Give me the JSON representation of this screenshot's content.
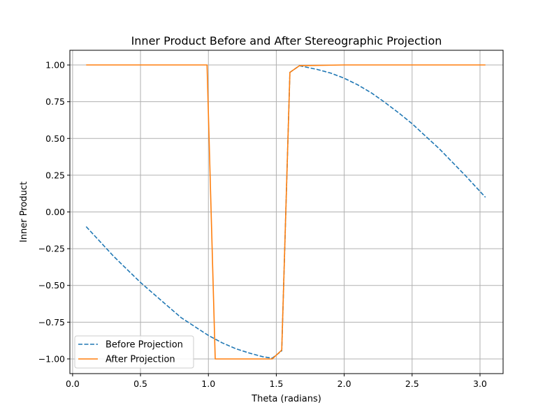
{
  "chart_data": {
    "type": "line",
    "title": "Inner Product Before and After Stereographic Projection",
    "xlabel": "Theta (radians)",
    "ylabel": "Inner Product",
    "xlim": [
      -0.02,
      3.17
    ],
    "ylim": [
      -1.1,
      1.1
    ],
    "xticks": [
      0.0,
      0.5,
      1.0,
      1.5,
      2.0,
      2.5,
      3.0
    ],
    "xtick_labels": [
      "0.0",
      "0.5",
      "1.0",
      "1.5",
      "2.0",
      "2.5",
      "3.0"
    ],
    "yticks": [
      -1.0,
      -0.75,
      -0.5,
      -0.25,
      0.0,
      0.25,
      0.5,
      0.75,
      1.0
    ],
    "ytick_labels": [
      "−1.00",
      "−0.75",
      "−0.50",
      "−0.25",
      "0.00",
      "0.25",
      "0.50",
      "0.75",
      "1.00"
    ],
    "grid": true,
    "legend_position": "lower-left",
    "series": [
      {
        "name": "Before Projection",
        "color": "#1f77b4",
        "dash": "dashed",
        "x": [
          0.1,
          0.2,
          0.3,
          0.4,
          0.5,
          0.6,
          0.7,
          0.8,
          0.9,
          1.0,
          1.1,
          1.2,
          1.3,
          1.4,
          1.47,
          1.54,
          1.6,
          1.67,
          1.8,
          1.9,
          2.0,
          2.1,
          2.2,
          2.3,
          2.4,
          2.5,
          2.6,
          2.7,
          2.8,
          2.9,
          3.04
        ],
        "y": [
          -0.1,
          -0.2,
          -0.3,
          -0.39,
          -0.48,
          -0.56,
          -0.64,
          -0.72,
          -0.78,
          -0.84,
          -0.89,
          -0.93,
          -0.96,
          -0.985,
          -0.995,
          -0.945,
          0.95,
          0.995,
          0.97,
          0.945,
          0.91,
          0.865,
          0.81,
          0.745,
          0.675,
          0.6,
          0.515,
          0.43,
          0.335,
          0.24,
          0.1
        ]
      },
      {
        "name": "After Projection",
        "color": "#ff7f0e",
        "dash": "solid",
        "x": [
          0.1,
          0.99,
          1.05,
          1.47,
          1.54,
          1.6,
          1.67,
          2.0,
          2.5,
          3.04
        ],
        "y": [
          1.0,
          1.0,
          -1.0,
          -1.0,
          -0.94,
          0.95,
          0.995,
          1.0,
          1.0,
          1.0
        ]
      }
    ]
  }
}
